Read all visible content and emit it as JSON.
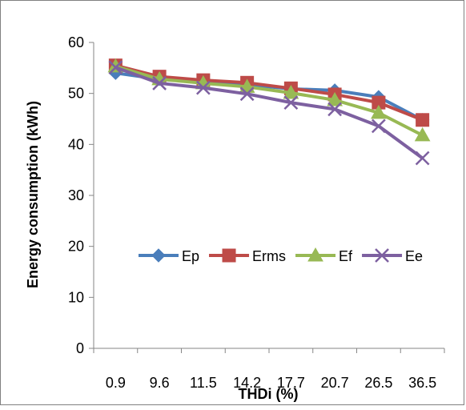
{
  "chart_data": {
    "type": "line",
    "title": "",
    "xlabel": "THDi (%)",
    "ylabel": "Energy consumption (kWh)",
    "categories": [
      "0.9",
      "9.6",
      "11.5",
      "14.2",
      "17.7",
      "20.7",
      "26.5",
      "36.5"
    ],
    "ylim": [
      0,
      60
    ],
    "yticks": [
      0,
      10,
      20,
      30,
      40,
      50,
      60
    ],
    "grid": false,
    "legend_position": "inside-bottom-right",
    "series": [
      {
        "name": "Ep",
        "color": "#4a7ebb",
        "marker": "diamond",
        "values": [
          54.0,
          52.8,
          52.2,
          51.7,
          50.9,
          50.6,
          49.3,
          44.8
        ]
      },
      {
        "name": "Erms",
        "color": "#be4b48",
        "marker": "square",
        "values": [
          55.5,
          53.3,
          52.6,
          52.1,
          51.0,
          49.8,
          48.2,
          44.8
        ]
      },
      {
        "name": "Ef",
        "color": "#98b954",
        "marker": "triangle",
        "values": [
          55.3,
          52.8,
          52.0,
          51.3,
          50.1,
          48.7,
          46.2,
          41.8
        ]
      },
      {
        "name": "Ee",
        "color": "#7d60a0",
        "marker": "x",
        "values": [
          55.1,
          52.0,
          51.1,
          49.9,
          48.2,
          46.9,
          43.6,
          37.3
        ]
      }
    ]
  }
}
